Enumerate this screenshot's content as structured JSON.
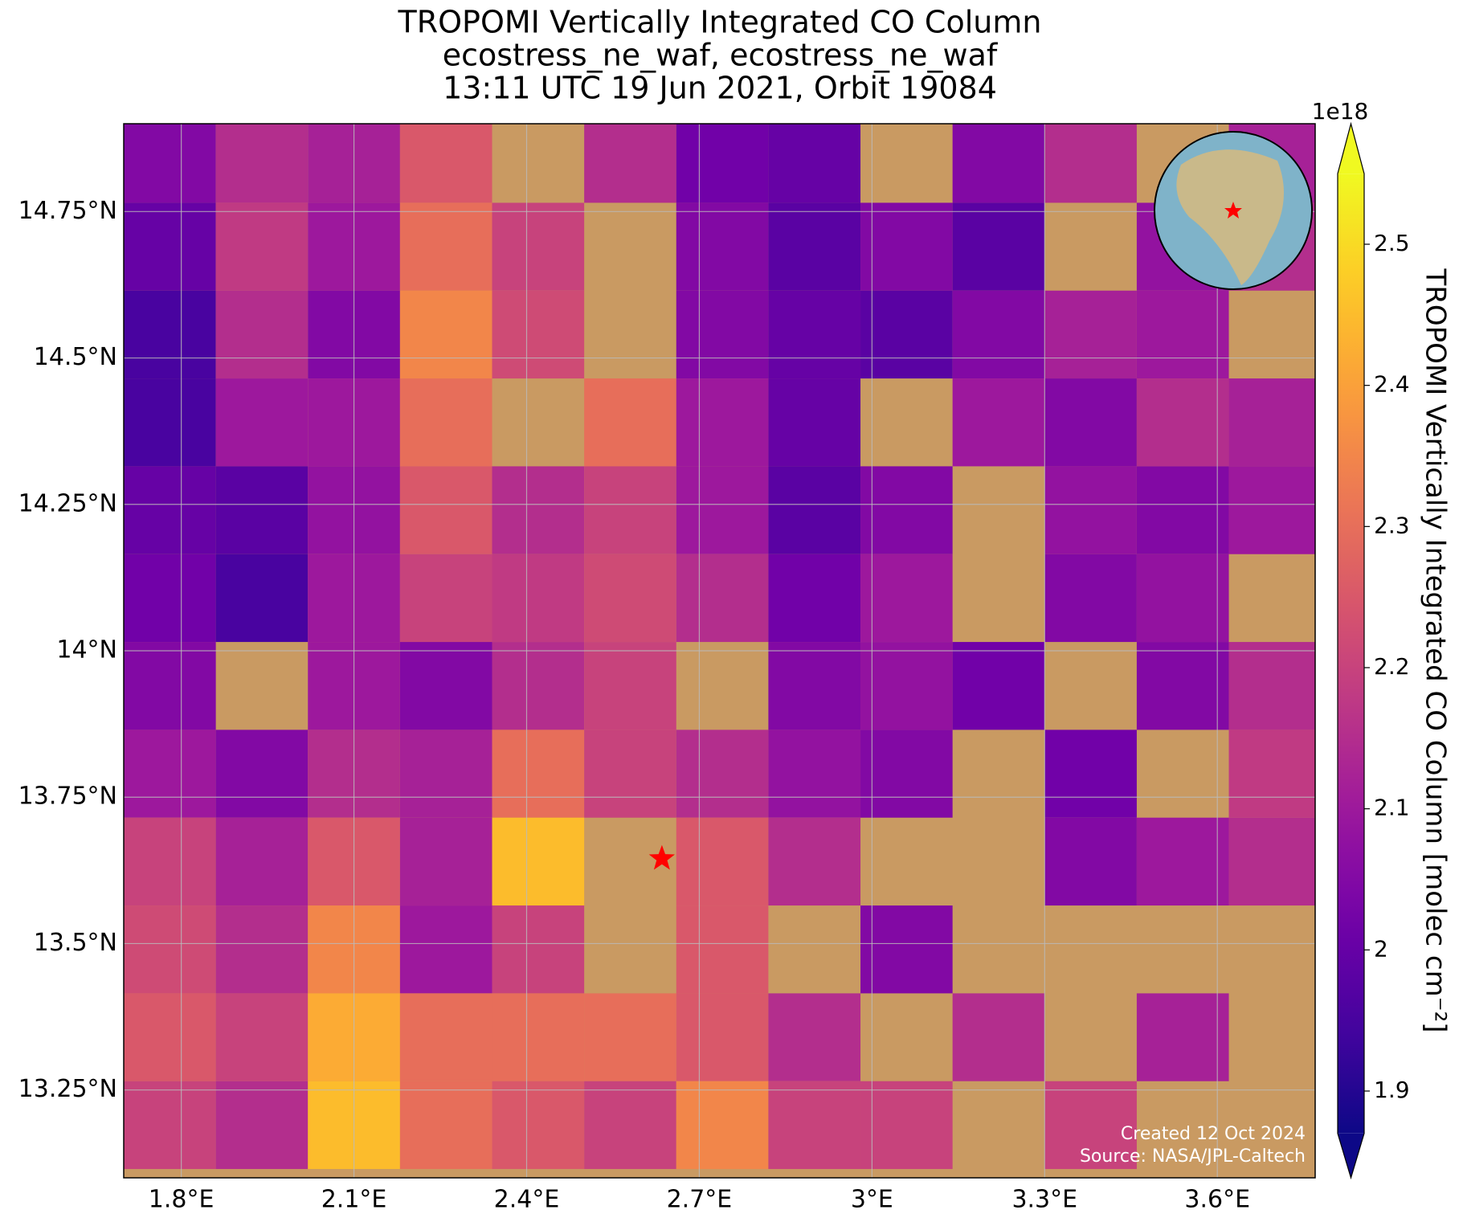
{
  "chart_data": {
    "type": "heatmap",
    "title_lines": [
      "TROPOMI Vertically Integrated CO Column",
      "ecostress_ne_waf, ecostress_ne_waf",
      "13:11 UTC 19 Jun 2021, Orbit 19084"
    ],
    "xlim": [
      1.7,
      3.77
    ],
    "ylim": [
      13.1,
      14.9
    ],
    "xticks": [
      {
        "value": 1.8,
        "label": "1.8°E"
      },
      {
        "value": 2.1,
        "label": "2.1°E"
      },
      {
        "value": 2.4,
        "label": "2.4°E"
      },
      {
        "value": 2.7,
        "label": "2.7°E"
      },
      {
        "value": 3,
        "label": "3°E"
      },
      {
        "value": 3.3,
        "label": "3.3°E"
      },
      {
        "value": 3.6,
        "label": "3.6°E"
      }
    ],
    "yticks": [
      {
        "value": 13.25,
        "label": "13.25°N"
      },
      {
        "value": 13.5,
        "label": "13.5°N"
      },
      {
        "value": 13.75,
        "label": "13.75°N"
      },
      {
        "value": 14,
        "label": "14°N"
      },
      {
        "value": 14.25,
        "label": "14.25°N"
      },
      {
        "value": 14.5,
        "label": "14.5°N"
      },
      {
        "value": 14.75,
        "label": "14.75°N"
      }
    ],
    "grid": true,
    "x": [
      1.78,
      1.94,
      2.1,
      2.26,
      2.42,
      2.58,
      2.74,
      2.9,
      3.06,
      3.22,
      3.38,
      3.54,
      3.7
    ],
    "y": [
      14.84,
      14.69,
      14.54,
      14.39,
      14.24,
      14.09,
      13.94,
      13.79,
      13.64,
      13.49,
      13.34,
      13.19
    ],
    "values": [
      [
        2.05,
        2.15,
        2.12,
        2.25,
        null,
        2.15,
        2.02,
        2.0,
        null,
        2.05,
        2.15,
        null,
        2.12
      ],
      [
        2.0,
        2.18,
        2.1,
        2.3,
        2.2,
        null,
        2.05,
        1.98,
        2.05,
        1.98,
        null,
        2.08,
        2.15
      ],
      [
        1.95,
        2.15,
        2.05,
        2.35,
        2.22,
        null,
        2.05,
        2.0,
        1.98,
        2.05,
        2.12,
        2.1,
        null
      ],
      [
        1.95,
        2.1,
        2.1,
        2.3,
        null,
        2.3,
        2.1,
        2.0,
        null,
        2.1,
        2.05,
        2.15,
        2.12
      ],
      [
        2.0,
        1.98,
        2.08,
        2.25,
        2.15,
        2.2,
        2.1,
        1.98,
        2.05,
        null,
        2.08,
        2.05,
        2.1
      ],
      [
        2.02,
        1.95,
        2.1,
        2.2,
        2.18,
        2.22,
        2.15,
        2.02,
        2.1,
        null,
        2.05,
        2.08,
        null
      ],
      [
        2.05,
        null,
        2.1,
        2.05,
        2.15,
        2.2,
        null,
        2.05,
        2.08,
        2.02,
        null,
        2.05,
        2.15
      ],
      [
        2.1,
        2.05,
        2.15,
        2.12,
        2.3,
        2.2,
        2.15,
        2.08,
        2.05,
        null,
        2.02,
        null,
        2.18
      ],
      [
        2.2,
        2.12,
        2.25,
        2.12,
        2.45,
        null,
        2.25,
        2.15,
        null,
        null,
        2.05,
        2.1,
        2.15
      ],
      [
        2.22,
        2.15,
        2.35,
        2.1,
        2.2,
        null,
        2.25,
        null,
        2.05,
        null,
        null,
        null,
        null
      ],
      [
        2.25,
        2.2,
        2.42,
        2.3,
        2.3,
        2.3,
        2.25,
        2.15,
        null,
        2.15,
        null,
        2.12,
        null
      ],
      [
        2.2,
        2.15,
        2.45,
        2.3,
        2.25,
        2.2,
        2.35,
        2.2,
        2.2,
        null,
        2.2,
        null,
        null
      ]
    ],
    "marker": {
      "x": 2.635,
      "y": 13.645,
      "color": "#ff0000"
    },
    "colorbar": {
      "clim": [
        1.87,
        2.55
      ],
      "ticks": [
        1.9,
        2.0,
        2.1,
        2.2,
        2.3,
        2.4,
        2.5
      ],
      "offset_label": "1e18",
      "label": "TROPOMI Vertically Integrated CO Column [molec cm⁻²]",
      "colormap": "plasma"
    },
    "credits": [
      "Created 12 Oct 2024",
      "Source: NASA/JPL-Caltech"
    ]
  }
}
